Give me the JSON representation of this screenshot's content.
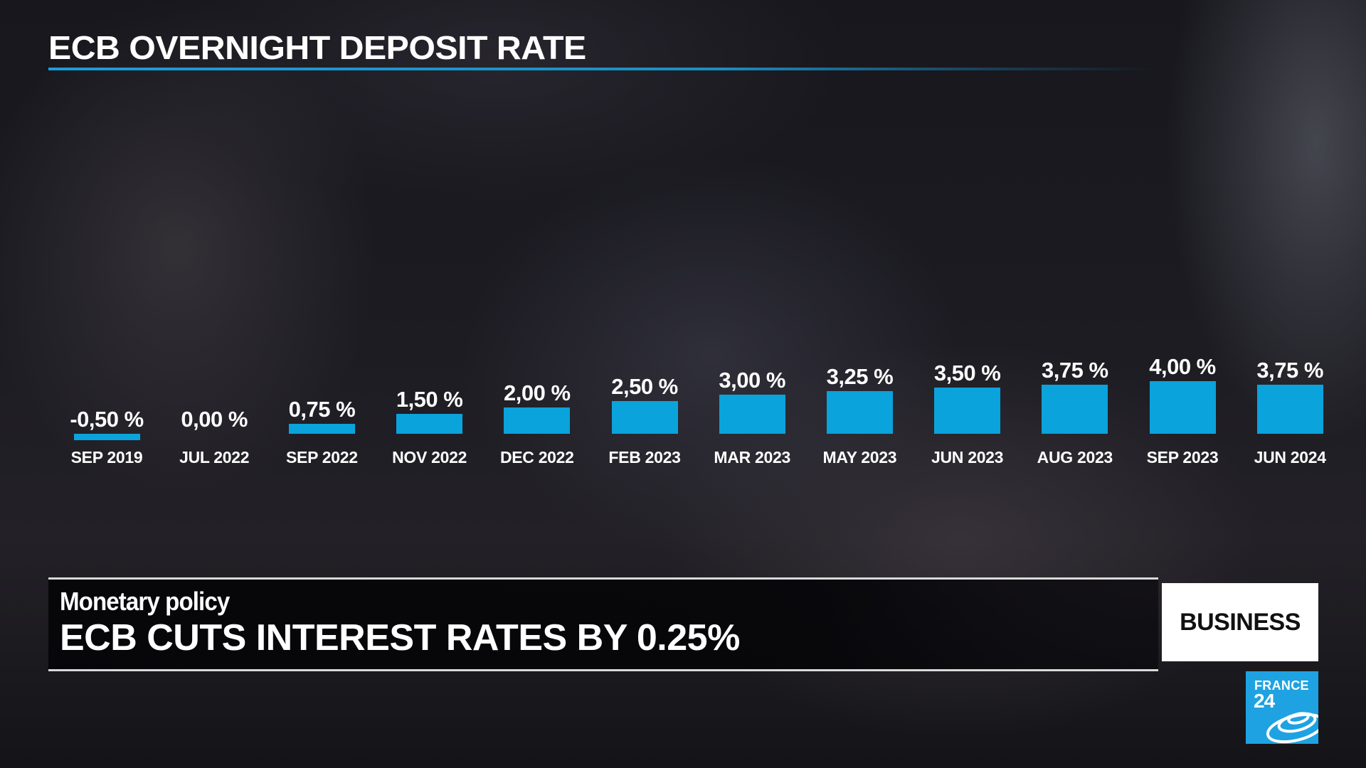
{
  "header": {
    "title": "ECB OVERNIGHT DEPOSIT RATE",
    "accent_color": "#1a9ed6"
  },
  "chart_data": {
    "type": "bar",
    "title": "ECB OVERNIGHT DEPOSIT RATE",
    "xlabel": "",
    "ylabel": "",
    "categories": [
      "SEP 2019",
      "JUL 2022",
      "SEP 2022",
      "NOV 2022",
      "DEC 2022",
      "FEB 2023",
      "MAR 2023",
      "MAY 2023",
      "JUN 2023",
      "AUG 2023",
      "SEP 2023",
      "JUN 2024"
    ],
    "values": [
      -0.5,
      0.0,
      0.75,
      1.5,
      2.0,
      2.5,
      3.0,
      3.25,
      3.5,
      3.75,
      4.0,
      3.75
    ],
    "labels": [
      "-0,50 %",
      "0,00 %",
      "0,75 %",
      "1,50 %",
      "2,00 %",
      "2,50 %",
      "3,00 %",
      "3,25 %",
      "3,50 %",
      "3,75 %",
      "4,00 %",
      "3,75 %"
    ],
    "bar_color": "#0aa3dc",
    "ylim": [
      -0.5,
      4.0
    ],
    "grid": false,
    "legend": "none"
  },
  "lower_third": {
    "kicker": "Monetary policy",
    "headline": "ECB CUTS INTEREST RATES BY 0.25%"
  },
  "section_badge": {
    "label": "BUSINESS"
  },
  "channel_logo": {
    "line1": "FRANCE",
    "line2": "24",
    "color": "#1ea2e2",
    "icon": "satellite-rings-icon"
  }
}
